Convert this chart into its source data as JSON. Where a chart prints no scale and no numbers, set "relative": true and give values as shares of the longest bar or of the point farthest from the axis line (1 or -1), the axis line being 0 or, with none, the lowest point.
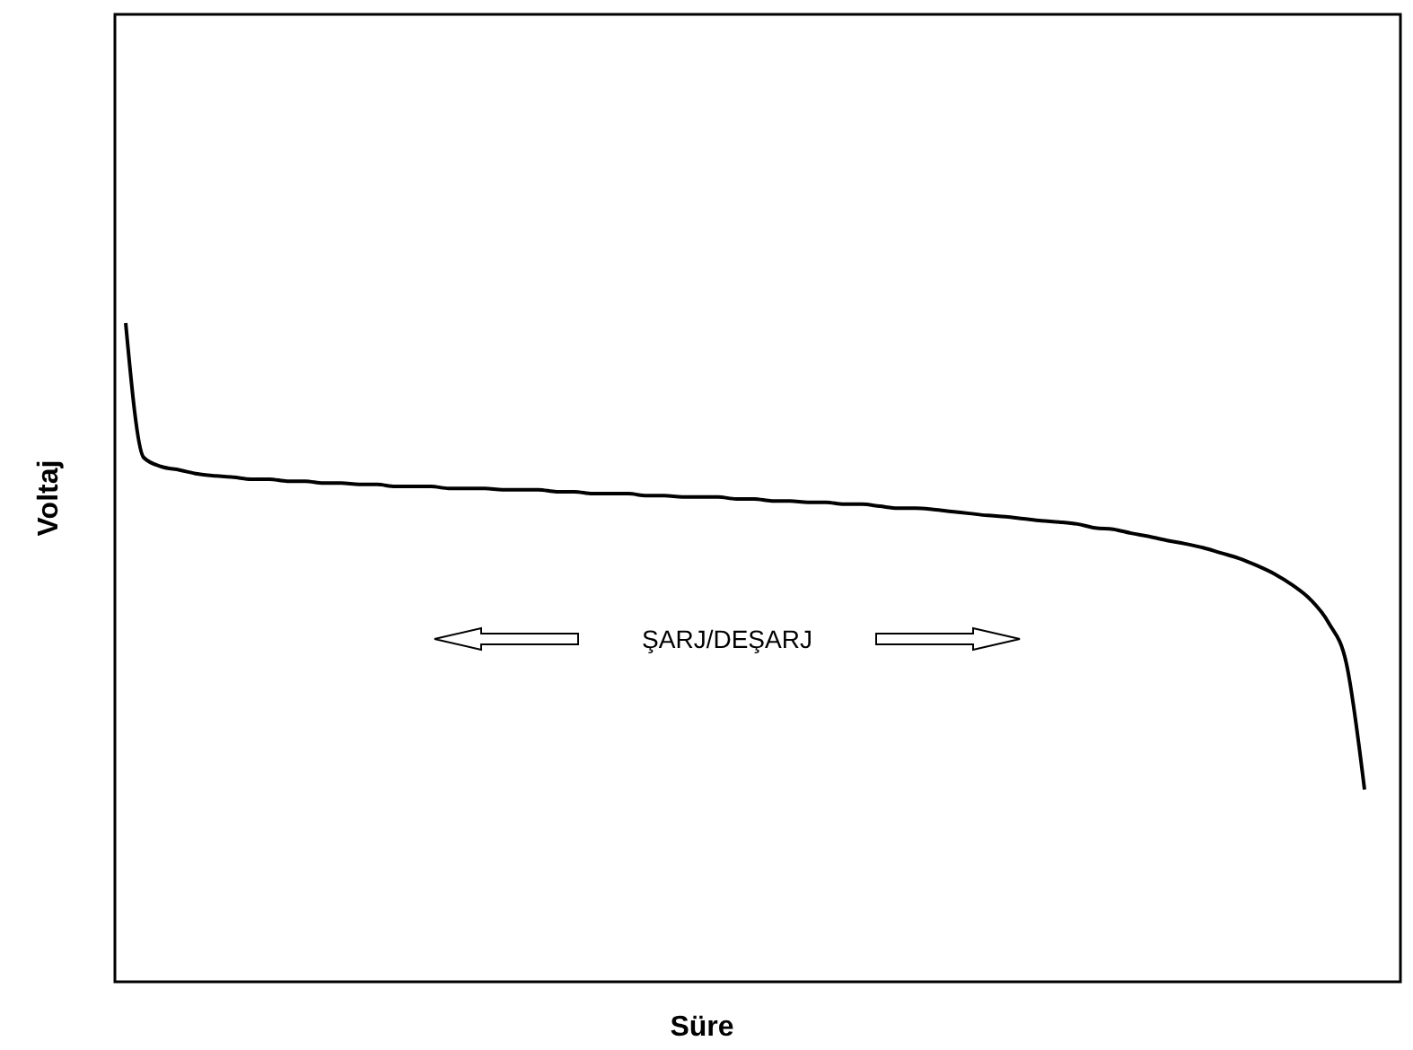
{
  "chart_data": {
    "type": "line",
    "relative": true,
    "xlabel": "Süre",
    "ylabel": "Voltaj",
    "annotations": [
      "ŞARJ/DEŞARJ"
    ],
    "marker": "none",
    "line_style": "solid",
    "categories": [
      null,
      null,
      null,
      null,
      null,
      null,
      null,
      null,
      null,
      null,
      null,
      null,
      null,
      null,
      null,
      null,
      null,
      null,
      null,
      null,
      null,
      null,
      null,
      null,
      null,
      null,
      null,
      null,
      null,
      null,
      null,
      null,
      null,
      null,
      null,
      null,
      null,
      null,
      null,
      null,
      null,
      null,
      null,
      null,
      null,
      null,
      null,
      null,
      null,
      null,
      null,
      null,
      null,
      null,
      null,
      null,
      null,
      null,
      null,
      null,
      null,
      null,
      null,
      null,
      null,
      null,
      null,
      null,
      null,
      null
    ],
    "series": [
      {
        "color": "#000000",
        "values": [
          1.0,
          0.796,
          0.782,
          0.777,
          0.771,
          0.768,
          0.766,
          0.763,
          0.763,
          0.76,
          0.76,
          0.757,
          0.757,
          0.755,
          0.755,
          0.752,
          0.752,
          0.752,
          0.749,
          0.749,
          0.749,
          0.747,
          0.747,
          0.747,
          0.744,
          0.744,
          0.741,
          0.741,
          0.741,
          0.738,
          0.738,
          0.736,
          0.736,
          0.736,
          0.733,
          0.733,
          0.73,
          0.73,
          0.728,
          0.728,
          0.725,
          0.725,
          0.722,
          0.719,
          0.719,
          0.717,
          0.714,
          0.711,
          0.708,
          0.706,
          0.703,
          0.7,
          0.698,
          0.695,
          0.689,
          0.687,
          0.681,
          0.676,
          0.67,
          0.665,
          0.659,
          0.651,
          0.643,
          0.632,
          0.619,
          0.602,
          0.58,
          0.545,
          0.482,
          0.292
        ]
      }
    ]
  }
}
